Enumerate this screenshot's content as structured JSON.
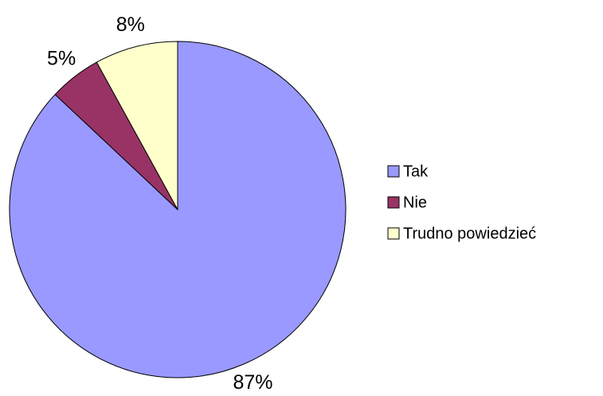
{
  "chart_data": {
    "type": "pie",
    "categories": [
      "Tak",
      "Nie",
      "Trudno powiedzieć"
    ],
    "values": [
      87,
      5,
      8
    ],
    "value_labels": [
      "87%",
      "5%",
      "8%"
    ],
    "colors": [
      "#9999ff",
      "#993366",
      "#ffffcc"
    ],
    "legend": "right"
  }
}
